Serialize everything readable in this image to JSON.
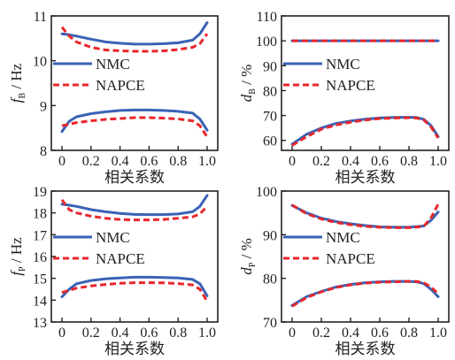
{
  "chart_data": [
    {
      "id": "fb",
      "type": "line",
      "ylabel_main": "f",
      "ylabel_sub": "B",
      "ylabel_unit": " / Hz",
      "xlabel": "相关系数",
      "xlim": [
        0,
        1.0
      ],
      "ylim": [
        8,
        11
      ],
      "xticks": [
        "0",
        "0.2",
        "0.4",
        "0.6",
        "0.8",
        "1.0"
      ],
      "yticks": [
        "8",
        "9",
        "10",
        "11"
      ],
      "legend": [
        "NMC",
        "NAPCE"
      ],
      "series": [
        {
          "name": "NMC",
          "group": "upper",
          "x": [
            0,
            0.05,
            0.1,
            0.2,
            0.3,
            0.4,
            0.5,
            0.6,
            0.7,
            0.8,
            0.9,
            0.95,
            1.0
          ],
          "values": [
            10.6,
            10.58,
            10.55,
            10.48,
            10.42,
            10.39,
            10.37,
            10.37,
            10.38,
            10.4,
            10.46,
            10.6,
            10.85
          ]
        },
        {
          "name": "NAPCE",
          "group": "upper",
          "x": [
            0,
            0.05,
            0.1,
            0.2,
            0.3,
            0.4,
            0.5,
            0.6,
            0.7,
            0.8,
            0.9,
            0.95,
            1.0
          ],
          "values": [
            10.75,
            10.55,
            10.42,
            10.3,
            10.24,
            10.22,
            10.21,
            10.21,
            10.22,
            10.25,
            10.3,
            10.38,
            10.6
          ]
        },
        {
          "name": "NMC",
          "group": "lower",
          "x": [
            0,
            0.05,
            0.1,
            0.2,
            0.3,
            0.4,
            0.5,
            0.6,
            0.7,
            0.8,
            0.9,
            0.95,
            1.0
          ],
          "values": [
            8.42,
            8.65,
            8.75,
            8.82,
            8.86,
            8.89,
            8.9,
            8.9,
            8.89,
            8.87,
            8.83,
            8.7,
            8.45
          ]
        },
        {
          "name": "NAPCE",
          "group": "lower",
          "x": [
            0,
            0.05,
            0.1,
            0.2,
            0.3,
            0.4,
            0.5,
            0.6,
            0.7,
            0.8,
            0.9,
            0.95,
            1.0
          ],
          "values": [
            8.55,
            8.58,
            8.62,
            8.66,
            8.69,
            8.71,
            8.73,
            8.73,
            8.72,
            8.7,
            8.66,
            8.55,
            8.3
          ]
        }
      ]
    },
    {
      "id": "db",
      "type": "line",
      "ylabel_main": "d",
      "ylabel_sub": "B",
      "ylabel_unit": " / %",
      "xlabel": "相关系数",
      "xlim": [
        0,
        1.0
      ],
      "ylim": [
        56,
        110
      ],
      "xticks": [
        "0",
        "0.2",
        "0.4",
        "0.6",
        "0.8",
        "1.0"
      ],
      "yticks": [
        "60",
        "70",
        "80",
        "90",
        "100",
        "110"
      ],
      "legend": [
        "NMC",
        "NAPCE"
      ],
      "series": [
        {
          "name": "NMC",
          "group": "upper",
          "x": [
            0,
            0.2,
            0.4,
            0.6,
            0.8,
            1.0
          ],
          "values": [
            100,
            100,
            100,
            100,
            100,
            100
          ]
        },
        {
          "name": "NAPCE",
          "group": "upper",
          "x": [
            0,
            0.2,
            0.4,
            0.6,
            0.8,
            1.0
          ],
          "values": [
            100,
            100,
            100,
            100,
            100,
            100
          ]
        },
        {
          "name": "NMC",
          "group": "lower",
          "x": [
            0,
            0.1,
            0.2,
            0.3,
            0.4,
            0.5,
            0.6,
            0.7,
            0.8,
            0.85,
            0.9,
            0.95,
            1.0
          ],
          "values": [
            58.5,
            62.5,
            65,
            66.8,
            67.8,
            68.5,
            69,
            69.2,
            69.3,
            69.2,
            68.5,
            66,
            61.5
          ]
        },
        {
          "name": "NAPCE",
          "group": "lower",
          "x": [
            0,
            0.1,
            0.2,
            0.3,
            0.4,
            0.5,
            0.6,
            0.7,
            0.8,
            0.85,
            0.9,
            0.95,
            1.0
          ],
          "values": [
            58,
            61.5,
            64.5,
            66.2,
            67.3,
            68.2,
            68.8,
            69,
            69.1,
            69,
            68.3,
            65.5,
            61
          ]
        }
      ]
    },
    {
      "id": "fp",
      "type": "line",
      "ylabel_main": "f",
      "ylabel_sub": "P",
      "ylabel_unit": " / Hz",
      "xlabel": "相关系数",
      "xlim": [
        0,
        1.0
      ],
      "ylim": [
        13,
        19
      ],
      "xticks": [
        "0",
        "0.2",
        "0.4",
        "0.6",
        "0.8",
        "1.0"
      ],
      "yticks": [
        "13",
        "14",
        "15",
        "16",
        "17",
        "18",
        "19"
      ],
      "legend": [
        "NMC",
        "NAPCE"
      ],
      "series": [
        {
          "name": "NMC",
          "group": "upper",
          "x": [
            0,
            0.05,
            0.1,
            0.2,
            0.3,
            0.4,
            0.5,
            0.6,
            0.7,
            0.8,
            0.9,
            0.95,
            1.0
          ],
          "values": [
            18.4,
            18.35,
            18.3,
            18.15,
            18.05,
            17.98,
            17.93,
            17.92,
            17.92,
            17.95,
            18.05,
            18.3,
            18.8
          ]
        },
        {
          "name": "NAPCE",
          "group": "upper",
          "x": [
            0,
            0.05,
            0.1,
            0.2,
            0.3,
            0.4,
            0.5,
            0.6,
            0.7,
            0.8,
            0.9,
            0.95,
            1.0
          ],
          "values": [
            18.6,
            18.15,
            18.0,
            17.85,
            17.75,
            17.7,
            17.68,
            17.68,
            17.7,
            17.75,
            17.82,
            17.95,
            18.3
          ]
        },
        {
          "name": "NMC",
          "group": "lower",
          "x": [
            0,
            0.05,
            0.1,
            0.2,
            0.3,
            0.4,
            0.5,
            0.6,
            0.7,
            0.8,
            0.9,
            0.95,
            1.0
          ],
          "values": [
            14.15,
            14.5,
            14.75,
            14.9,
            14.98,
            15.02,
            15.05,
            15.05,
            15.04,
            15.02,
            14.95,
            14.75,
            14.2
          ]
        },
        {
          "name": "NAPCE",
          "group": "lower",
          "x": [
            0,
            0.05,
            0.1,
            0.2,
            0.3,
            0.4,
            0.5,
            0.6,
            0.7,
            0.8,
            0.9,
            0.95,
            1.0
          ],
          "values": [
            14.35,
            14.45,
            14.55,
            14.65,
            14.72,
            14.77,
            14.8,
            14.8,
            14.79,
            14.76,
            14.7,
            14.5,
            13.95
          ]
        }
      ]
    },
    {
      "id": "dp",
      "type": "line",
      "ylabel_main": "d",
      "ylabel_sub": "P",
      "ylabel_unit": " / %",
      "xlabel": "相关系数",
      "xlim": [
        0,
        1.0
      ],
      "ylim": [
        70,
        100
      ],
      "xticks": [
        "0",
        "0.2",
        "0.4",
        "0.6",
        "0.8",
        "1.0"
      ],
      "yticks": [
        "70",
        "80",
        "90",
        "100"
      ],
      "legend": [
        "NMC",
        "NAPCE"
      ],
      "series": [
        {
          "name": "NMC",
          "group": "upper",
          "x": [
            0,
            0.1,
            0.2,
            0.3,
            0.4,
            0.5,
            0.6,
            0.7,
            0.8,
            0.9,
            0.95,
            1.0
          ],
          "values": [
            96.7,
            95,
            93.8,
            93,
            92.5,
            92.1,
            91.8,
            91.7,
            91.7,
            92,
            93.3,
            95.2
          ]
        },
        {
          "name": "NAPCE",
          "group": "upper",
          "x": [
            0,
            0.1,
            0.2,
            0.3,
            0.4,
            0.5,
            0.6,
            0.7,
            0.8,
            0.9,
            0.95,
            1.0
          ],
          "values": [
            96.8,
            94.8,
            93.6,
            92.8,
            92.3,
            91.9,
            91.7,
            91.6,
            91.6,
            91.9,
            93.8,
            97
          ]
        },
        {
          "name": "NMC",
          "group": "lower",
          "x": [
            0,
            0.1,
            0.2,
            0.3,
            0.4,
            0.5,
            0.6,
            0.7,
            0.8,
            0.85,
            0.9,
            0.95,
            1.0
          ],
          "values": [
            73.8,
            75.8,
            77,
            78,
            78.6,
            79,
            79.2,
            79.3,
            79.3,
            79.2,
            78.8,
            77.5,
            75.8
          ]
        },
        {
          "name": "NAPCE",
          "group": "lower",
          "x": [
            0,
            0.1,
            0.2,
            0.3,
            0.4,
            0.5,
            0.6,
            0.7,
            0.8,
            0.85,
            0.9,
            0.95,
            1.0
          ],
          "values": [
            73.6,
            75.6,
            76.9,
            77.9,
            78.5,
            78.9,
            79.1,
            79.2,
            79.3,
            79.3,
            79,
            78,
            76.5
          ]
        }
      ]
    }
  ],
  "colors": {
    "NMC": "#3a62b5",
    "NAPCE": "#e8262b",
    "axis": "#222222"
  }
}
